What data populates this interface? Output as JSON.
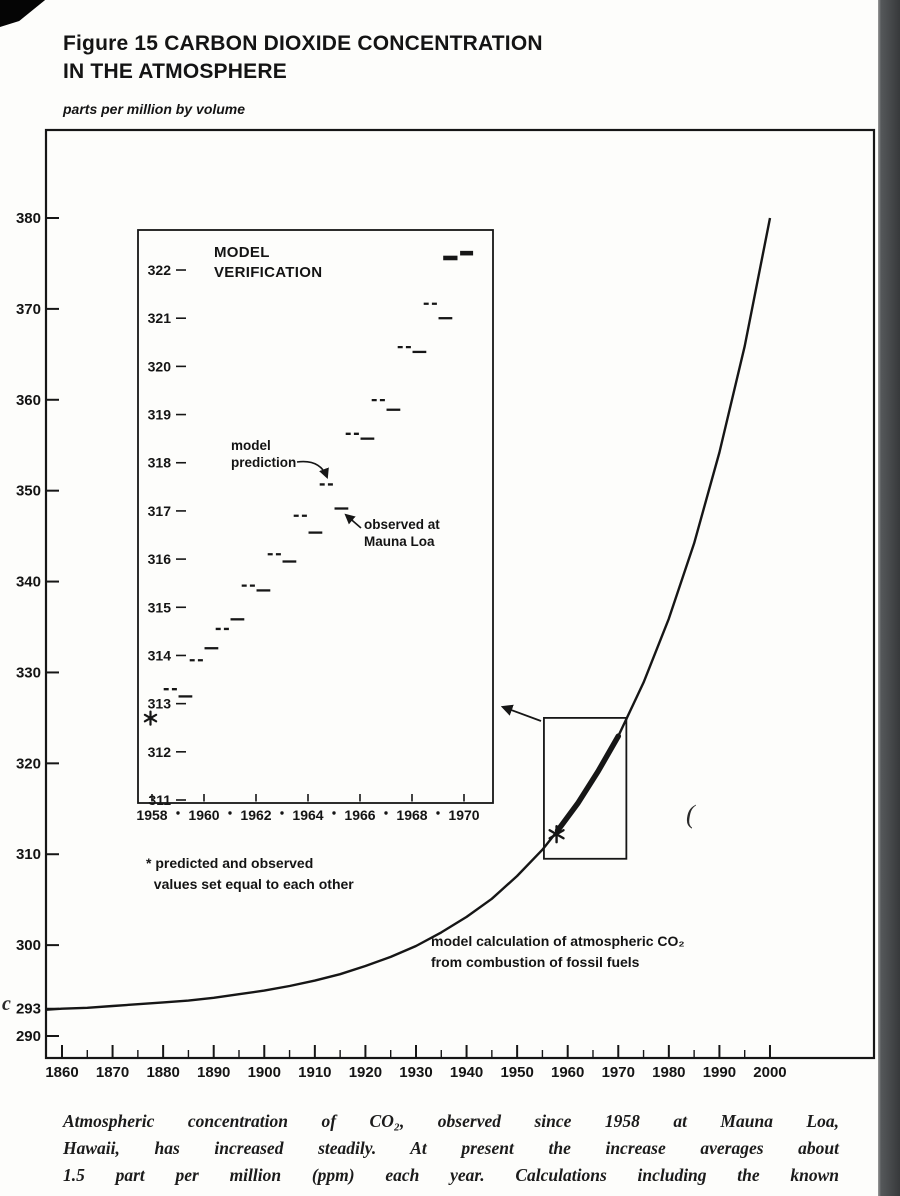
{
  "page": {
    "figure_title": "Figure 15 CARBON DIOXIDE CONCENTRATION\nIN THE ATMOSPHERE",
    "caption_lines": [
      "Atmospheric concentration of CO₂, observed since 1958 at Mauna Loa,",
      "Hawaii, has increased steadily. At present the increase averages about",
      "1.5 part per million (ppm) each year. Calculations including the known"
    ],
    "stray_marks": [
      "c",
      "("
    ]
  },
  "chart_data": [
    {
      "name": "main-co2-projection",
      "type": "line",
      "ylabel": "parts per million by volume",
      "xlim": [
        1860,
        2000
      ],
      "ylim": [
        290,
        380
      ],
      "x_ticks": [
        1860,
        1870,
        1880,
        1890,
        1900,
        1910,
        1920,
        1930,
        1940,
        1950,
        1960,
        1970,
        1980,
        1990,
        2000
      ],
      "y_ticks": [
        290,
        293,
        300,
        310,
        320,
        330,
        340,
        350,
        360,
        370,
        380
      ],
      "annotation": "model calculation of atmospheric CO₂\nfrom combustion of fossil fuels",
      "asterisk_point": [
        1957.8,
        312.2
      ],
      "zoom_box": {
        "x1": 1955.3,
        "x2": 1971.6,
        "y1": 309.5,
        "y2": 325.0
      },
      "series": [
        {
          "name": "model calculation of atmospheric CO₂ from combustion of fossil fuels",
          "style": "thin-solid",
          "points": [
            [
              1857,
              292.9
            ],
            [
              1860,
              293.0
            ],
            [
              1865,
              293.1
            ],
            [
              1870,
              293.3
            ],
            [
              1875,
              293.5
            ],
            [
              1880,
              293.7
            ],
            [
              1885,
              293.9
            ],
            [
              1890,
              294.2
            ],
            [
              1895,
              294.6
            ],
            [
              1900,
              295.0
            ],
            [
              1905,
              295.5
            ],
            [
              1910,
              296.1
            ],
            [
              1915,
              296.8
            ],
            [
              1920,
              297.7
            ],
            [
              1925,
              298.7
            ],
            [
              1930,
              299.9
            ],
            [
              1935,
              301.4
            ],
            [
              1940,
              303.1
            ],
            [
              1945,
              305.1
            ],
            [
              1950,
              307.6
            ],
            [
              1955,
              310.5
            ],
            [
              1960,
              314.0
            ],
            [
              1965,
              318.1
            ],
            [
              1970,
              323.0
            ],
            [
              1975,
              328.9
            ],
            [
              1980,
              335.9
            ],
            [
              1985,
              344.2
            ],
            [
              1990,
              354.2
            ],
            [
              1995,
              365.9
            ],
            [
              2000,
              380.0
            ]
          ]
        },
        {
          "name": "observed at Mauna Loa 1958-1970",
          "style": "thick-solid",
          "points": [
            [
              1958,
              312.6
            ],
            [
              1962,
              315.6
            ],
            [
              1966,
              319.1
            ],
            [
              1970,
              323.0
            ]
          ]
        }
      ]
    },
    {
      "name": "inset-model-verification",
      "type": "line",
      "title": "MODEL\nVERIFICATION",
      "xlim": [
        1958,
        1971
      ],
      "ylim": [
        311,
        322
      ],
      "x_ticks": [
        1958,
        1960,
        1962,
        1964,
        1966,
        1968,
        1970
      ],
      "y_ticks": [
        311,
        312,
        313,
        314,
        315,
        316,
        317,
        318,
        319,
        320,
        321,
        322
      ],
      "asterisk_point": [
        1958,
        312.7
      ],
      "final_bold": true,
      "pairs": [
        {
          "year": 1959,
          "predicted": 313.3,
          "observed": 313.15
        },
        {
          "year": 1960,
          "predicted": 313.9,
          "observed": 314.15
        },
        {
          "year": 1961,
          "predicted": 314.55,
          "observed": 314.75
        },
        {
          "year": 1962,
          "predicted": 315.45,
          "observed": 315.35
        },
        {
          "year": 1963,
          "predicted": 316.1,
          "observed": 315.95
        },
        {
          "year": 1964,
          "predicted": 316.9,
          "observed": 316.55
        },
        {
          "year": 1965,
          "predicted": 317.55,
          "observed": 317.05
        },
        {
          "year": 1966,
          "predicted": 318.6,
          "observed": 318.5
        },
        {
          "year": 1967,
          "predicted": 319.3,
          "observed": 319.1
        },
        {
          "year": 1968,
          "predicted": 320.4,
          "observed": 320.3
        },
        {
          "year": 1969,
          "predicted": 321.3,
          "observed": 321.0
        },
        {
          "year": 1970,
          "predicted": 322.35,
          "observed": 322.25
        }
      ],
      "annotations": {
        "model_prediction": "model\nprediction",
        "observed": "observed at\nMauna Loa",
        "footnote": "* predicted and observed\n  values set equal to each other"
      }
    }
  ]
}
